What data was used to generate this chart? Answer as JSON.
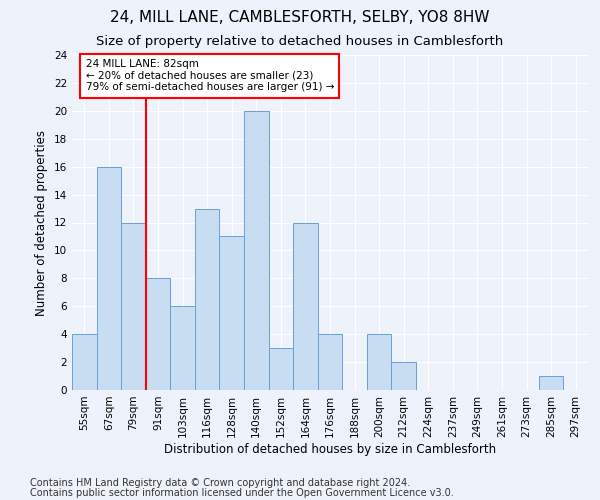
{
  "title": "24, MILL LANE, CAMBLESFORTH, SELBY, YO8 8HW",
  "subtitle": "Size of property relative to detached houses in Camblesforth",
  "xlabel": "Distribution of detached houses by size in Camblesforth",
  "ylabel": "Number of detached properties",
  "bins": [
    "55sqm",
    "67sqm",
    "79sqm",
    "91sqm",
    "103sqm",
    "116sqm",
    "128sqm",
    "140sqm",
    "152sqm",
    "164sqm",
    "176sqm",
    "188sqm",
    "200sqm",
    "212sqm",
    "224sqm",
    "237sqm",
    "249sqm",
    "261sqm",
    "273sqm",
    "285sqm",
    "297sqm"
  ],
  "values": [
    4,
    16,
    12,
    8,
    6,
    13,
    11,
    20,
    3,
    12,
    4,
    0,
    4,
    2,
    0,
    0,
    0,
    0,
    0,
    1,
    0
  ],
  "bar_color": "#c9ddf2",
  "bar_edge_color": "#6a9fd8",
  "highlight_color": "red",
  "annotation_text": "24 MILL LANE: 82sqm\n← 20% of detached houses are smaller (23)\n79% of semi-detached houses are larger (91) →",
  "annotation_box_color": "white",
  "annotation_box_edge_color": "red",
  "ylim": [
    0,
    24
  ],
  "yticks": [
    0,
    2,
    4,
    6,
    8,
    10,
    12,
    14,
    16,
    18,
    20,
    22,
    24
  ],
  "footer_line1": "Contains HM Land Registry data © Crown copyright and database right 2024.",
  "footer_line2": "Contains public sector information licensed under the Open Government Licence v3.0.",
  "background_color": "#eef2fa",
  "grid_color": "white",
  "title_fontsize": 11,
  "subtitle_fontsize": 9.5,
  "axis_label_fontsize": 8.5,
  "tick_fontsize": 7.5,
  "footer_fontsize": 7
}
